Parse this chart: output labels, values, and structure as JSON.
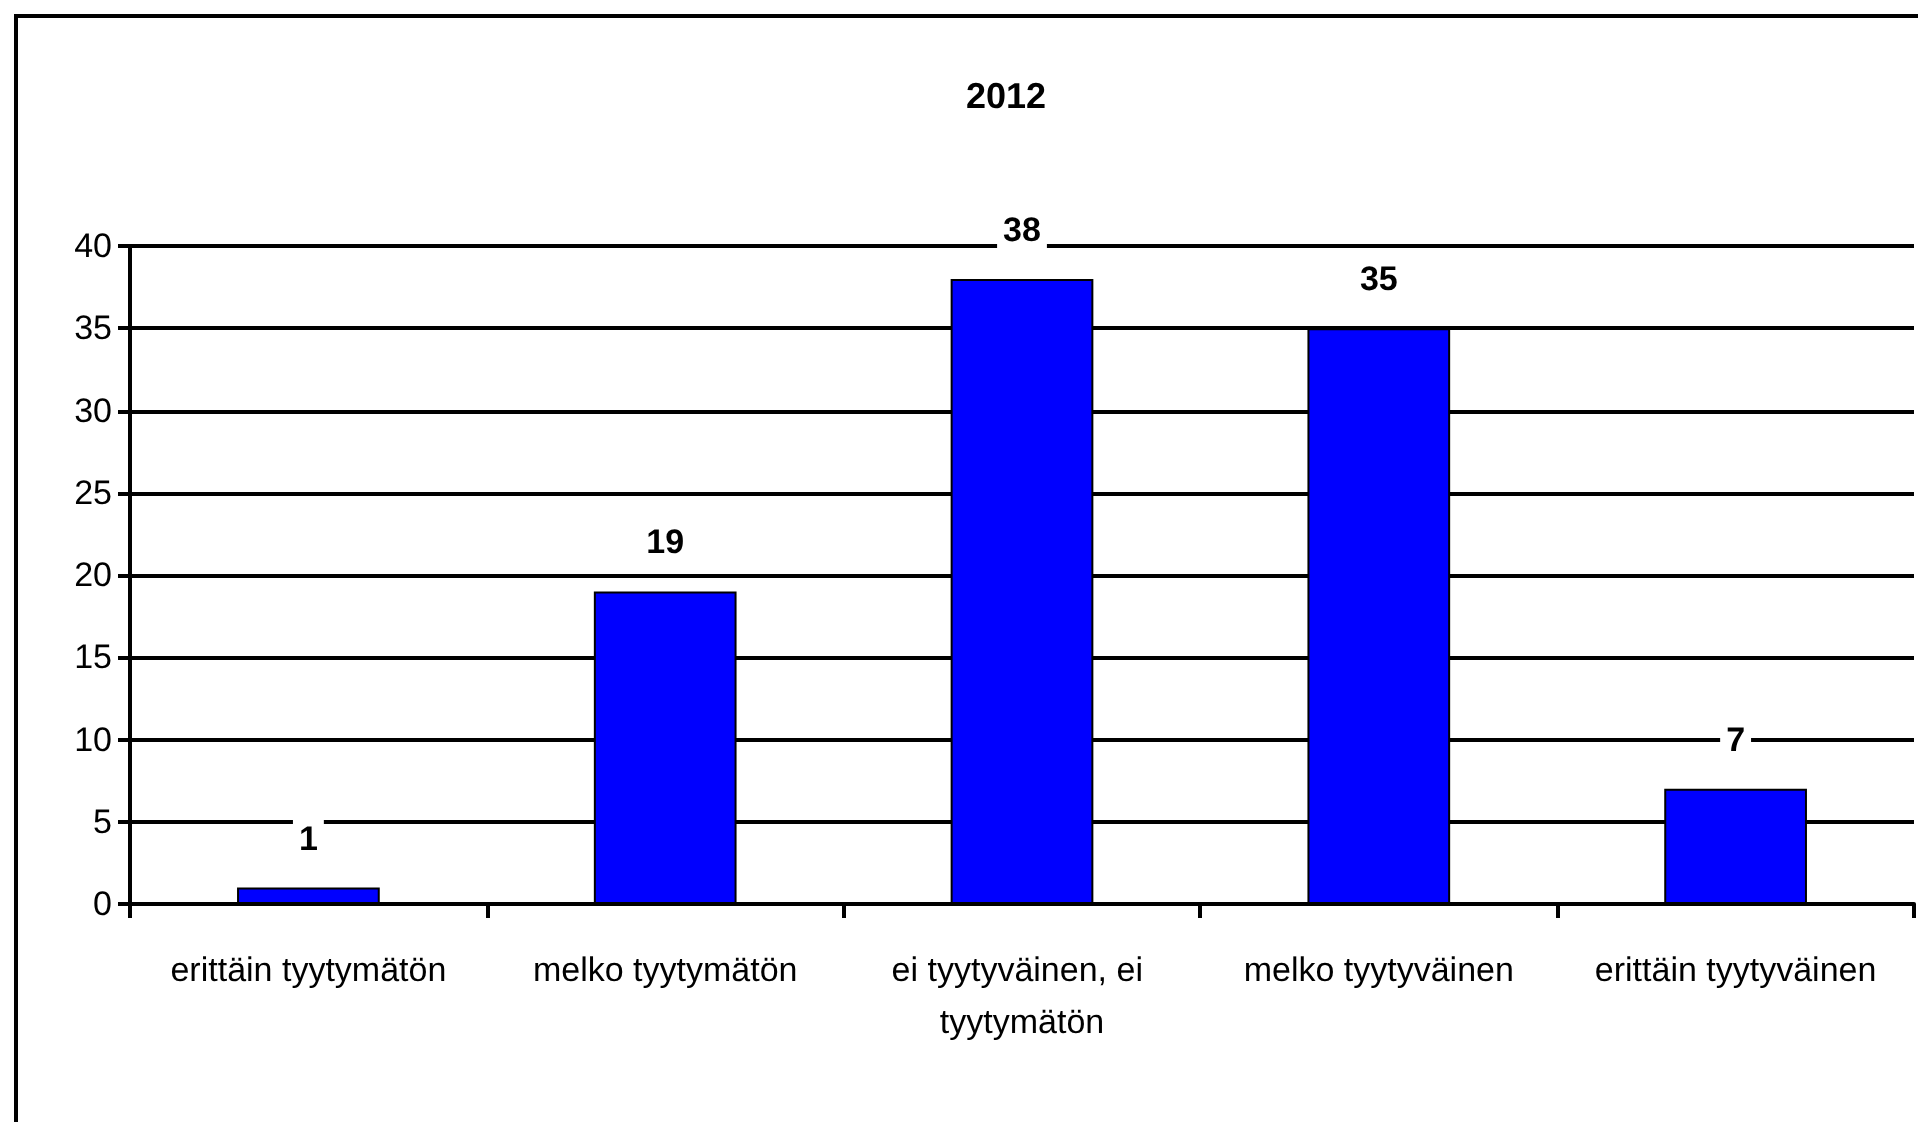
{
  "chart_data": {
    "type": "bar",
    "title": "2012",
    "categories": [
      "erittäin tyytymätön",
      "melko tyytymätön",
      "ei tyytyväinen, ei tyytymätön",
      "melko tyytyväinen",
      "erittäin tyytyväinen"
    ],
    "values": [
      1,
      19,
      38,
      35,
      7
    ],
    "color": "#0000ff",
    "ylim": [
      0,
      40
    ],
    "yticks": [
      0,
      5,
      10,
      15,
      20,
      25,
      30,
      35,
      40
    ],
    "grid": "y",
    "data_labels": true
  }
}
